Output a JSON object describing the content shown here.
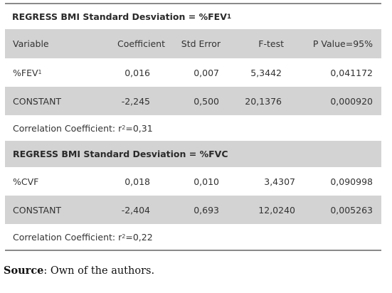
{
  "table1": {
    "title": "REGRESS BMI Standard Desviation = %FEV",
    "title_sub": "1",
    "headers": [
      "Variable",
      "Coefficient",
      "Std Error",
      "F-test",
      "P Value=95%"
    ],
    "rows": [
      {
        "variable": "%FEV",
        "variable_sub": "1",
        "coefficient": "0,016",
        "std_error": "0,007",
        "f_test": "5,3442",
        "p_value": "0,041172"
      },
      {
        "variable": "CONSTANT",
        "variable_sub": "",
        "coefficient": "-2,245",
        "std_error": "0,500",
        "f_test": "20,1376",
        "p_value": "0,000920"
      }
    ],
    "correlation_prefix": "Correlation Coefficient: r",
    "correlation_sup": "2",
    "correlation_value": "=0,31"
  },
  "table2": {
    "title": "REGRESS BMI Standard Desviation = %FVC",
    "rows": [
      {
        "variable": "%CVF",
        "coefficient": "0,018",
        "std_error": "0,010",
        "f_test": "3,4307",
        "p_value": "0,090998"
      },
      {
        "variable": "CONSTANT",
        "coefficient": "-2,404",
        "std_error": "0,693",
        "f_test": "12,0240",
        "p_value": "0,005263"
      }
    ],
    "correlation_prefix": "Correlation Coefficient: r",
    "correlation_sup": "2",
    "correlation_value": "=0,22"
  },
  "source": {
    "label": "Source",
    "text": ": Own of the authors."
  },
  "colors": {
    "shaded_row": "#d3d3d3",
    "rule": "#8a8a8a"
  }
}
